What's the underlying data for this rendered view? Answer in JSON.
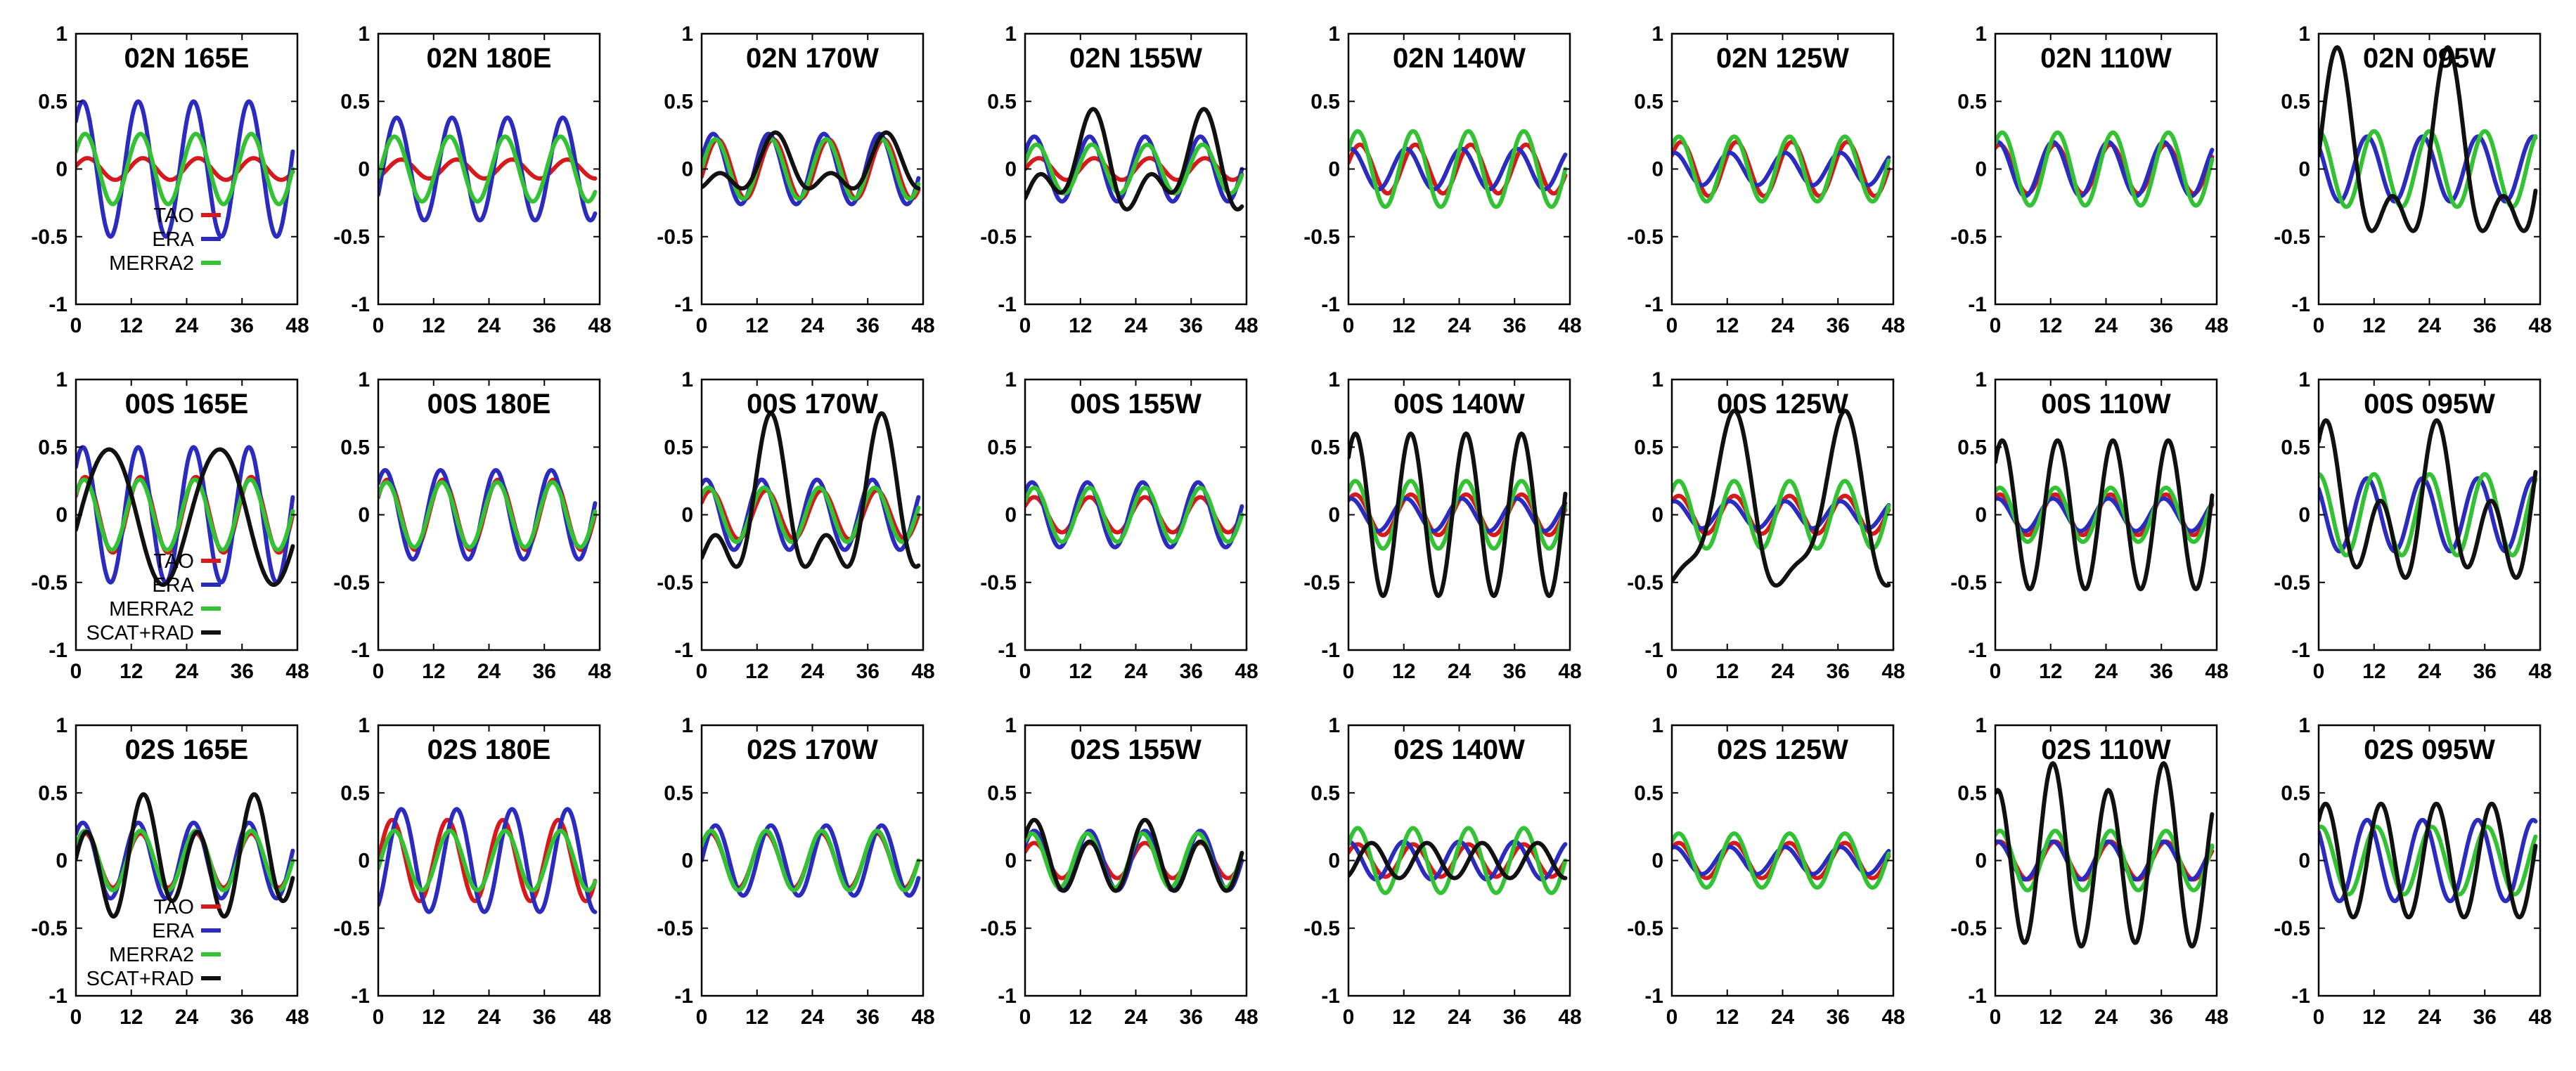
{
  "colors": {
    "TAO": "#d7191c",
    "ERA": "#2b2bbf",
    "MERRA2": "#33c233",
    "SCAT+RAD": "#111111"
  },
  "chart_data": {
    "type": "line",
    "layout": "3x8 grid",
    "xlim": [
      0,
      48
    ],
    "ylim": [
      -1,
      1
    ],
    "xticks": [
      "0",
      "12",
      "24",
      "36",
      "48"
    ],
    "yticks": [
      "1",
      "0.5",
      "0",
      "-0.5",
      "-1"
    ],
    "period_hours": 12,
    "series_model": "value(t) = amp*cos(2*pi*(t - phase_h)/12) + amp2*cos(2*pi*(t - phase2_h)/24)",
    "panels": [
      {
        "title": "02N 165E",
        "legend": [
          "TAO",
          "ERA",
          "MERRA2"
        ],
        "series": [
          {
            "name": "TAO",
            "amp": 0.08,
            "phase_h": 2.5
          },
          {
            "name": "ERA",
            "amp": 0.5,
            "phase_h": 1.5
          },
          {
            "name": "MERRA2",
            "amp": 0.26,
            "phase_h": 2
          }
        ]
      },
      {
        "title": "02N 180E",
        "series": [
          {
            "name": "TAO",
            "amp": 0.07,
            "phase_h": 5
          },
          {
            "name": "ERA",
            "amp": 0.38,
            "phase_h": 4
          },
          {
            "name": "MERRA2",
            "amp": 0.24,
            "phase_h": 3.5
          }
        ]
      },
      {
        "title": "02N 170W",
        "series": [
          {
            "name": "TAO",
            "amp": 0.22,
            "phase_h": 3.5
          },
          {
            "name": "ERA",
            "amp": 0.26,
            "phase_h": 2.5
          },
          {
            "name": "MERRA2",
            "amp": 0.22,
            "phase_h": 3
          },
          {
            "name": "SCAT+RAD",
            "amp": 0.12,
            "phase_h": 4,
            "amp2": 0.15,
            "phase2_h": 16
          }
        ]
      },
      {
        "title": "02N 155W",
        "series": [
          {
            "name": "TAO",
            "amp": 0.08,
            "phase_h": 3
          },
          {
            "name": "ERA",
            "amp": 0.24,
            "phase_h": 2
          },
          {
            "name": "MERRA2",
            "amp": 0.18,
            "phase_h": 2.5
          },
          {
            "name": "SCAT+RAD",
            "amp": 0.2,
            "phase_h": 3,
            "amp2": 0.25,
            "phase2_h": 14
          }
        ]
      },
      {
        "title": "02N 140W",
        "series": [
          {
            "name": "TAO",
            "amp": 0.18,
            "phase_h": 2.5
          },
          {
            "name": "ERA",
            "amp": 0.15,
            "phase_h": 0.5
          },
          {
            "name": "MERRA2",
            "amp": 0.28,
            "phase_h": 2
          }
        ]
      },
      {
        "title": "02N 125W",
        "series": [
          {
            "name": "TAO",
            "amp": 0.2,
            "phase_h": 2
          },
          {
            "name": "ERA",
            "amp": 0.12,
            "phase_h": 0.5
          },
          {
            "name": "MERRA2",
            "amp": 0.24,
            "phase_h": 1.5
          }
        ]
      },
      {
        "title": "02N 110W",
        "series": [
          {
            "name": "TAO",
            "amp": 0.18,
            "phase_h": 1
          },
          {
            "name": "ERA",
            "amp": 0.2,
            "phase_h": 0.5
          },
          {
            "name": "MERRA2",
            "amp": 0.27,
            "phase_h": 1.5
          }
        ]
      },
      {
        "title": "02N 095W",
        "series": [
          {
            "name": "ERA",
            "amp": 0.24,
            "phase_h": 10.5
          },
          {
            "name": "MERRA2",
            "amp": 0.28,
            "phase_h": 12
          },
          {
            "name": "SCAT+RAD",
            "amp": 0.35,
            "phase_h": 4,
            "amp2": 0.55,
            "phase2_h": 4
          }
        ]
      },
      {
        "title": "00S 165E",
        "legend": [
          "TAO",
          "ERA",
          "MERRA2",
          "SCAT+RAD"
        ],
        "series": [
          {
            "name": "TAO",
            "amp": 0.28,
            "phase_h": 2
          },
          {
            "name": "ERA",
            "amp": 0.5,
            "phase_h": 1.5
          },
          {
            "name": "MERRA2",
            "amp": 0.26,
            "phase_h": 1.8
          },
          {
            "name": "SCAT+RAD",
            "amp": 0.02,
            "phase_h": 0,
            "amp2": 0.5,
            "phase2_h": 7
          }
        ]
      },
      {
        "title": "00S 180E",
        "series": [
          {
            "name": "TAO",
            "amp": 0.26,
            "phase_h": 2
          },
          {
            "name": "ERA",
            "amp": 0.33,
            "phase_h": 1.5
          },
          {
            "name": "MERRA2",
            "amp": 0.24,
            "phase_h": 1.8
          }
        ]
      },
      {
        "title": "00S 170W",
        "series": [
          {
            "name": "TAO",
            "amp": 0.18,
            "phase_h": 2
          },
          {
            "name": "ERA",
            "amp": 0.26,
            "phase_h": 1
          },
          {
            "name": "MERRA2",
            "amp": 0.2,
            "phase_h": 1.5
          },
          {
            "name": "SCAT+RAD",
            "amp": 0.3,
            "phase_h": 3,
            "amp2": 0.45,
            "phase2_h": 15
          }
        ]
      },
      {
        "title": "00S 155W",
        "series": [
          {
            "name": "TAO",
            "amp": 0.13,
            "phase_h": 2
          },
          {
            "name": "ERA",
            "amp": 0.24,
            "phase_h": 1.5
          },
          {
            "name": "MERRA2",
            "amp": 0.2,
            "phase_h": 2
          }
        ]
      },
      {
        "title": "00S 140W",
        "series": [
          {
            "name": "TAO",
            "amp": 0.15,
            "phase_h": 1.5
          },
          {
            "name": "ERA",
            "amp": 0.12,
            "phase_h": 0.5
          },
          {
            "name": "MERRA2",
            "amp": 0.25,
            "phase_h": 1.5
          },
          {
            "name": "SCAT+RAD",
            "amp": 0.6,
            "phase_h": 1.5
          }
        ]
      },
      {
        "title": "00S 125W",
        "series": [
          {
            "name": "TAO",
            "amp": 0.14,
            "phase_h": 1.5
          },
          {
            "name": "ERA",
            "amp": 0.1,
            "phase_h": 0.5
          },
          {
            "name": "MERRA2",
            "amp": 0.25,
            "phase_h": 1.5
          },
          {
            "name": "SCAT+RAD",
            "amp": 0.18,
            "phase_h": 2,
            "amp2": 0.6,
            "phase2_h": 13
          }
        ]
      },
      {
        "title": "00S 110W",
        "series": [
          {
            "name": "TAO",
            "amp": 0.15,
            "phase_h": 1
          },
          {
            "name": "ERA",
            "amp": 0.12,
            "phase_h": 0.5
          },
          {
            "name": "MERRA2",
            "amp": 0.2,
            "phase_h": 1
          },
          {
            "name": "SCAT+RAD",
            "amp": 0.55,
            "phase_h": 1.5
          }
        ]
      },
      {
        "title": "00S 095W",
        "series": [
          {
            "name": "ERA",
            "amp": 0.27,
            "phase_h": 10.5
          },
          {
            "name": "MERRA2",
            "amp": 0.3,
            "phase_h": 0
          },
          {
            "name": "SCAT+RAD",
            "amp": 0.4,
            "phase_h": 1.5,
            "amp2": 0.3,
            "phase2_h": 2
          }
        ]
      },
      {
        "title": "02S 165E",
        "legend": [
          "TAO",
          "ERA",
          "MERRA2",
          "SCAT+RAD"
        ],
        "series": [
          {
            "name": "TAO",
            "amp": 0.2,
            "phase_h": 2
          },
          {
            "name": "ERA",
            "amp": 0.28,
            "phase_h": 1.5
          },
          {
            "name": "MERRA2",
            "amp": 0.22,
            "phase_h": 2
          },
          {
            "name": "SCAT+RAD",
            "amp": 0.35,
            "phase_h": 2.5,
            "amp2": 0.15,
            "phase2_h": 16
          }
        ]
      },
      {
        "title": "02S 180E",
        "series": [
          {
            "name": "TAO",
            "amp": 0.3,
            "phase_h": 3
          },
          {
            "name": "ERA",
            "amp": 0.38,
            "phase_h": 5
          },
          {
            "name": "MERRA2",
            "amp": 0.22,
            "phase_h": 3.5
          }
        ]
      },
      {
        "title": "02S 170W",
        "series": [
          {
            "name": "TAO",
            "amp": 0.2,
            "phase_h": 2
          },
          {
            "name": "ERA",
            "amp": 0.26,
            "phase_h": 3
          },
          {
            "name": "MERRA2",
            "amp": 0.22,
            "phase_h": 2
          }
        ]
      },
      {
        "title": "02S 155W",
        "series": [
          {
            "name": "TAO",
            "amp": 0.13,
            "phase_h": 2
          },
          {
            "name": "ERA",
            "amp": 0.22,
            "phase_h": 2
          },
          {
            "name": "MERRA2",
            "amp": 0.2,
            "phase_h": 1.5
          },
          {
            "name": "SCAT+RAD",
            "amp": 0.22,
            "phase_h": 2,
            "amp2": 0.08,
            "phase2_h": 2
          }
        ]
      },
      {
        "title": "02S 140W",
        "series": [
          {
            "name": "TAO",
            "amp": 0.12,
            "phase_h": 2
          },
          {
            "name": "ERA",
            "amp": 0.14,
            "phase_h": 0
          },
          {
            "name": "MERRA2",
            "amp": 0.24,
            "phase_h": 2
          },
          {
            "name": "SCAT+RAD",
            "amp": 0.13,
            "phase_h": 5
          }
        ]
      },
      {
        "title": "02S 125W",
        "series": [
          {
            "name": "TAO",
            "amp": 0.13,
            "phase_h": 1.5
          },
          {
            "name": "ERA",
            "amp": 0.1,
            "phase_h": 0.5
          },
          {
            "name": "MERRA2",
            "amp": 0.2,
            "phase_h": 1.5
          }
        ]
      },
      {
        "title": "02S 110W",
        "series": [
          {
            "name": "TAO",
            "amp": 0.14,
            "phase_h": 1
          },
          {
            "name": "ERA",
            "amp": 0.14,
            "phase_h": 0.5
          },
          {
            "name": "MERRA2",
            "amp": 0.22,
            "phase_h": 1
          },
          {
            "name": "SCAT+RAD",
            "amp": 0.62,
            "phase_h": 0.5,
            "amp2": 0.1,
            "phase2_h": 12
          }
        ]
      },
      {
        "title": "02S 095W",
        "series": [
          {
            "name": "ERA",
            "amp": 0.3,
            "phase_h": 10.5
          },
          {
            "name": "MERRA2",
            "amp": 0.25,
            "phase_h": 0.5
          },
          {
            "name": "SCAT+RAD",
            "amp": 0.42,
            "phase_h": 1.5
          }
        ]
      }
    ]
  }
}
